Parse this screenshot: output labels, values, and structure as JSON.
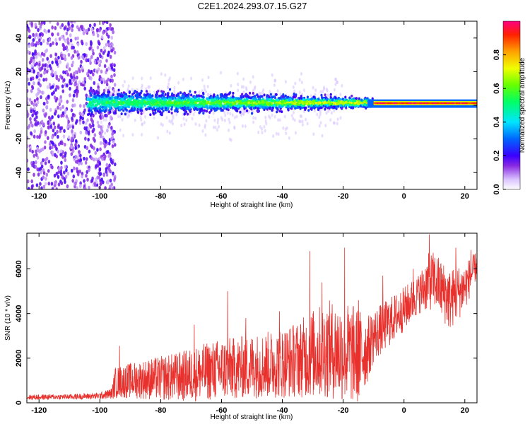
{
  "figure": {
    "title": "C2E1.2024.293.07.15.G27"
  },
  "chart_data": [
    {
      "type": "heatmap",
      "title": "C2E1.2024.293.07.15.G27",
      "xlabel": "Height of straight line (km)",
      "ylabel": "Frequency (Hz)",
      "xlim": [
        -124,
        24
      ],
      "ylim": [
        -50,
        50
      ],
      "x_ticks": [
        -120,
        -100,
        -80,
        -60,
        -40,
        -20,
        0,
        20
      ],
      "y_ticks": [
        -40,
        -20,
        0,
        20,
        40
      ],
      "colorbar": {
        "label": "Normalized spectral amplitude",
        "range": [
          0,
          1
        ],
        "ticks": [
          0.0,
          0.2,
          0.4,
          0.6,
          0.8
        ]
      },
      "regions": [
        {
          "x_range": [
            -124,
            -96
          ],
          "freq_range": [
            -50,
            50
          ],
          "amplitude": "0.05-0.2",
          "note": "noisy"
        },
        {
          "x_range": [
            -104,
            -10
          ],
          "freq_range": [
            -5,
            8
          ],
          "amplitude": "0.2-0.6"
        },
        {
          "x_range": [
            -10,
            24
          ],
          "freq_center": 1,
          "amplitude": "0.9-1.0"
        }
      ]
    },
    {
      "type": "line",
      "xlabel": "Height of straight line (km)",
      "ylabel": "SNR (10 * v/v)",
      "xlim": [
        -124,
        24
      ],
      "ylim": [
        0,
        7600
      ],
      "x_ticks": [
        -120,
        -100,
        -80,
        -60,
        -40,
        -20,
        0,
        20
      ],
      "y_ticks": [
        0,
        2000,
        4000,
        6000
      ],
      "color": "#e8302c",
      "series": [
        {
          "x": [
            -124,
            -110,
            -100,
            -96,
            -95,
            -90,
            -85,
            -80,
            -75,
            -70,
            -65,
            -60,
            -55,
            -50,
            -45,
            -40,
            -35,
            -30,
            -25,
            -20,
            -15,
            -12,
            -10,
            -5,
            0,
            5,
            8,
            10,
            15,
            20,
            24
          ],
          "mean": [
            250,
            270,
            310,
            420,
            900,
            1000,
            1050,
            1100,
            1150,
            1250,
            1400,
            1500,
            1550,
            1650,
            1700,
            1800,
            1950,
            2200,
            2400,
            2300,
            2100,
            2400,
            3000,
            3600,
            4200,
            4900,
            5400,
            5500,
            4600,
            5200,
            6200
          ],
          "spread": [
            120,
            120,
            150,
            250,
            700,
            800,
            900,
            1000,
            1100,
            1200,
            1300,
            1400,
            1400,
            1450,
            1500,
            1600,
            1700,
            2000,
            2200,
            2300,
            2200,
            1500,
            1200,
            1100,
            1000,
            900,
            1300,
            1300,
            1400,
            1100,
            600
          ],
          "peaks": [
            {
              "x": -93.5,
              "y": 2550
            },
            {
              "x": -69,
              "y": 3500
            },
            {
              "x": -58,
              "y": 5000
            },
            {
              "x": -52,
              "y": 3800
            },
            {
              "x": -41,
              "y": 4100
            },
            {
              "x": -31,
              "y": 6800
            },
            {
              "x": -27,
              "y": 5400
            },
            {
              "x": -19.5,
              "y": 6950
            },
            {
              "x": -15,
              "y": 4600
            },
            {
              "x": -7,
              "y": 5700
            },
            {
              "x": 3,
              "y": 6000
            },
            {
              "x": 8.3,
              "y": 7550
            },
            {
              "x": 17,
              "y": 6950
            },
            {
              "x": 22,
              "y": 6850
            }
          ]
        }
      ]
    }
  ]
}
